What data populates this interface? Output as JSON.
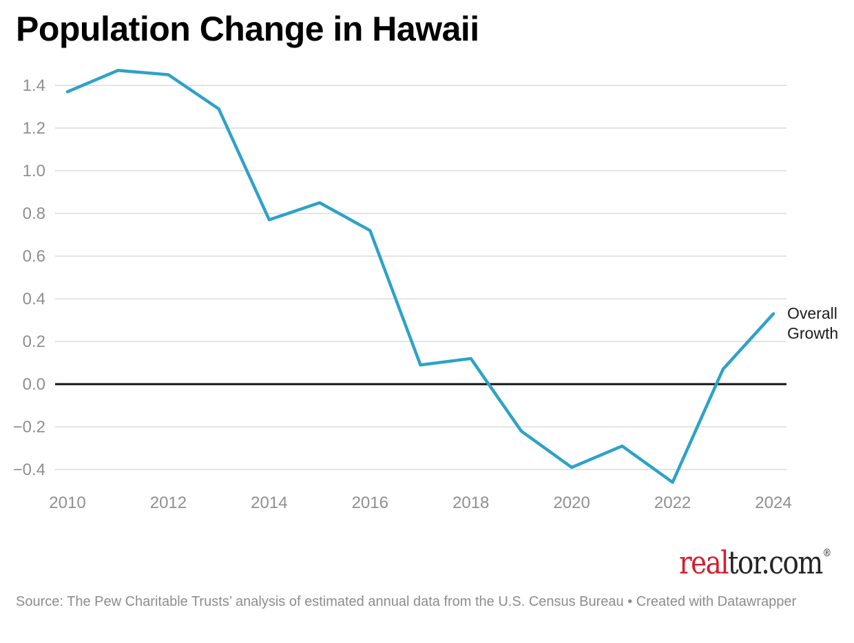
{
  "title": "Population Change in Hawaii",
  "annotation": {
    "series_label": "Overall Growth"
  },
  "footer": {
    "source_text": "Source: The Pew Charitable Trusts’ analysis of estimated annual data from the U.S. Census Bureau • Created with Datawrapper",
    "logo": {
      "part_red": "real",
      "part_dark": "tor.com",
      "registered": "®"
    }
  },
  "colors": {
    "background": "#ffffff",
    "line": "#2da2c8",
    "grid": "#e3e3e3",
    "zero_line": "#111111",
    "axis_text": "#8f8f8f",
    "title_text": "#000000",
    "annotation_text": "#1b1b1b",
    "source_text": "#8c8c8c",
    "logo_red": "#d21f2f",
    "logo_dark": "#242424"
  },
  "chart_data": {
    "type": "line",
    "title": "Population Change in Hawaii",
    "xlabel": "",
    "ylabel": "",
    "x": [
      2010,
      2011,
      2012,
      2013,
      2014,
      2015,
      2016,
      2017,
      2018,
      2019,
      2020,
      2021,
      2022,
      2023,
      2024
    ],
    "series": [
      {
        "name": "Overall Growth",
        "values": [
          1.37,
          1.47,
          1.45,
          1.29,
          0.77,
          0.85,
          0.72,
          0.09,
          0.12,
          -0.22,
          -0.39,
          -0.29,
          -0.46,
          0.07,
          0.33
        ]
      }
    ],
    "xlim": [
      2010,
      2024
    ],
    "ylim": [
      -0.5,
      1.5
    ],
    "grid": "horizontal",
    "zero_baseline": true,
    "legend_position": "end-of-line",
    "yticks": [
      {
        "value": 1.4,
        "label": "1.4"
      },
      {
        "value": 1.2,
        "label": "1.2"
      },
      {
        "value": 1.0,
        "label": "1.0"
      },
      {
        "value": 0.8,
        "label": "0.8"
      },
      {
        "value": 0.6,
        "label": "0.6"
      },
      {
        "value": 0.4,
        "label": "0.4"
      },
      {
        "value": 0.2,
        "label": "0.2"
      },
      {
        "value": 0.0,
        "label": "0.0"
      },
      {
        "value": -0.2,
        "label": "−0.2"
      },
      {
        "value": -0.4,
        "label": "−0.4"
      }
    ],
    "xticks": [
      {
        "value": 2010,
        "label": "2010"
      },
      {
        "value": 2012,
        "label": "2012"
      },
      {
        "value": 2014,
        "label": "2014"
      },
      {
        "value": 2016,
        "label": "2016"
      },
      {
        "value": 2018,
        "label": "2018"
      },
      {
        "value": 2020,
        "label": "2020"
      },
      {
        "value": 2022,
        "label": "2022"
      },
      {
        "value": 2024,
        "label": "2024"
      }
    ]
  }
}
